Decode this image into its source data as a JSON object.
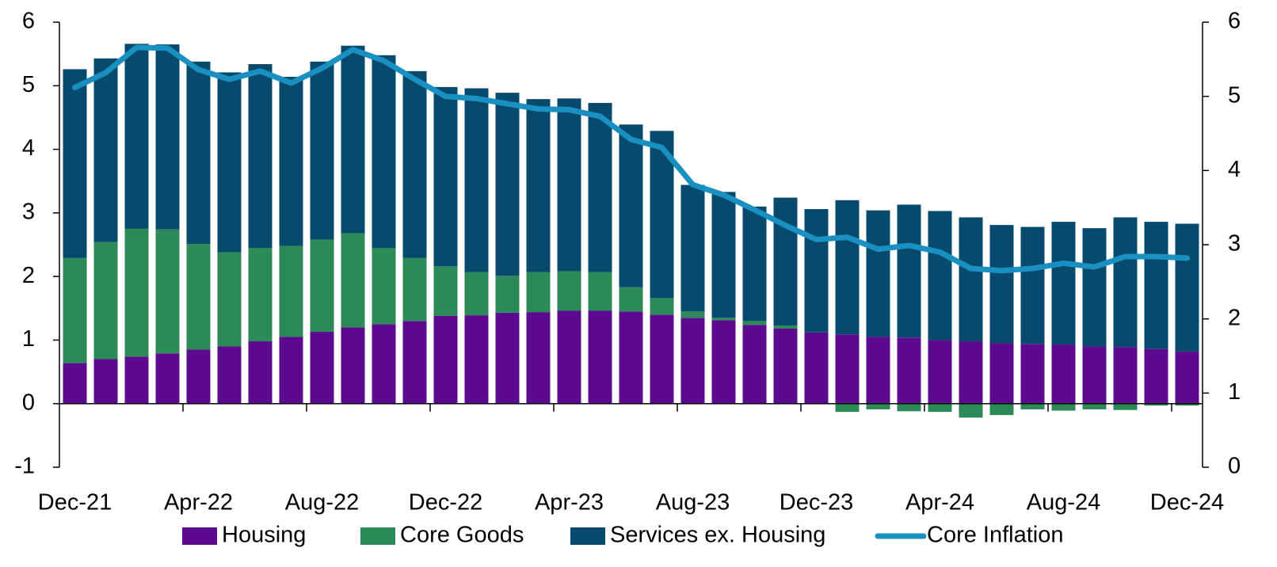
{
  "chart_data": {
    "type": "bar",
    "stacked": true,
    "categories": [
      "Dec-21",
      null,
      null,
      null,
      "Apr-22",
      null,
      null,
      null,
      "Aug-22",
      null,
      null,
      null,
      "Dec-22",
      null,
      null,
      null,
      "Apr-23",
      null,
      null,
      null,
      "Aug-23",
      null,
      null,
      null,
      "Dec-23",
      null,
      null,
      null,
      "Apr-24",
      null,
      null,
      null,
      "Aug-24",
      null,
      null,
      null,
      "Dec-24"
    ],
    "series": [
      {
        "name": "Housing",
        "color": "#5c0a8f",
        "values": [
          0.64,
          0.7,
          0.74,
          0.79,
          0.85,
          0.9,
          0.98,
          1.05,
          1.13,
          1.2,
          1.25,
          1.3,
          1.38,
          1.39,
          1.43,
          1.44,
          1.46,
          1.46,
          1.45,
          1.4,
          1.35,
          1.31,
          1.24,
          1.18,
          1.12,
          1.09,
          1.05,
          1.04,
          1.0,
          0.98,
          0.95,
          0.94,
          0.93,
          0.9,
          0.89,
          0.86,
          0.82
        ]
      },
      {
        "name": "Core Goods",
        "color": "#2b8a57",
        "values": [
          1.65,
          1.84,
          2.01,
          1.95,
          1.66,
          1.48,
          1.47,
          1.43,
          1.45,
          1.48,
          1.2,
          0.99,
          0.78,
          0.68,
          0.58,
          0.63,
          0.62,
          0.61,
          0.38,
          0.26,
          0.1,
          0.04,
          0.06,
          0.05,
          -0.01,
          -0.13,
          -0.09,
          -0.12,
          -0.13,
          -0.22,
          -0.18,
          -0.09,
          -0.11,
          -0.09,
          -0.1,
          -0.03,
          -0.03
        ]
      },
      {
        "name": "Services ex. Housing",
        "color": "#074a6c",
        "values": [
          2.97,
          2.89,
          2.91,
          2.91,
          2.87,
          2.83,
          2.89,
          2.66,
          2.8,
          2.95,
          3.03,
          2.94,
          2.82,
          2.89,
          2.88,
          2.72,
          2.72,
          2.66,
          2.56,
          2.63,
          1.99,
          1.98,
          1.8,
          2.01,
          1.94,
          2.11,
          1.99,
          2.09,
          2.03,
          1.95,
          1.86,
          1.84,
          1.93,
          1.86,
          2.04,
          2.0,
          2.01
        ]
      },
      {
        "name": "Core Inflation",
        "color": "#1a8fc2",
        "type": "line",
        "axis": "y2",
        "values": [
          5.12,
          5.32,
          5.66,
          5.65,
          5.36,
          5.23,
          5.34,
          5.18,
          5.38,
          5.63,
          5.48,
          5.23,
          5.0,
          4.97,
          4.9,
          4.83,
          4.82,
          4.73,
          4.42,
          4.31,
          3.81,
          3.67,
          3.47,
          3.26,
          3.07,
          3.1,
          2.94,
          2.99,
          2.9,
          2.68,
          2.65,
          2.68,
          2.75,
          2.7,
          2.84,
          2.84,
          2.82
        ]
      }
    ],
    "ylim": [
      -1,
      6
    ],
    "yticks": [
      -1,
      0,
      1,
      2,
      3,
      4,
      5,
      6
    ],
    "y2lim": [
      0,
      6
    ],
    "y2ticks": [
      0,
      1,
      2,
      3,
      4,
      5,
      6
    ],
    "grid": false,
    "legend": "bottom"
  }
}
